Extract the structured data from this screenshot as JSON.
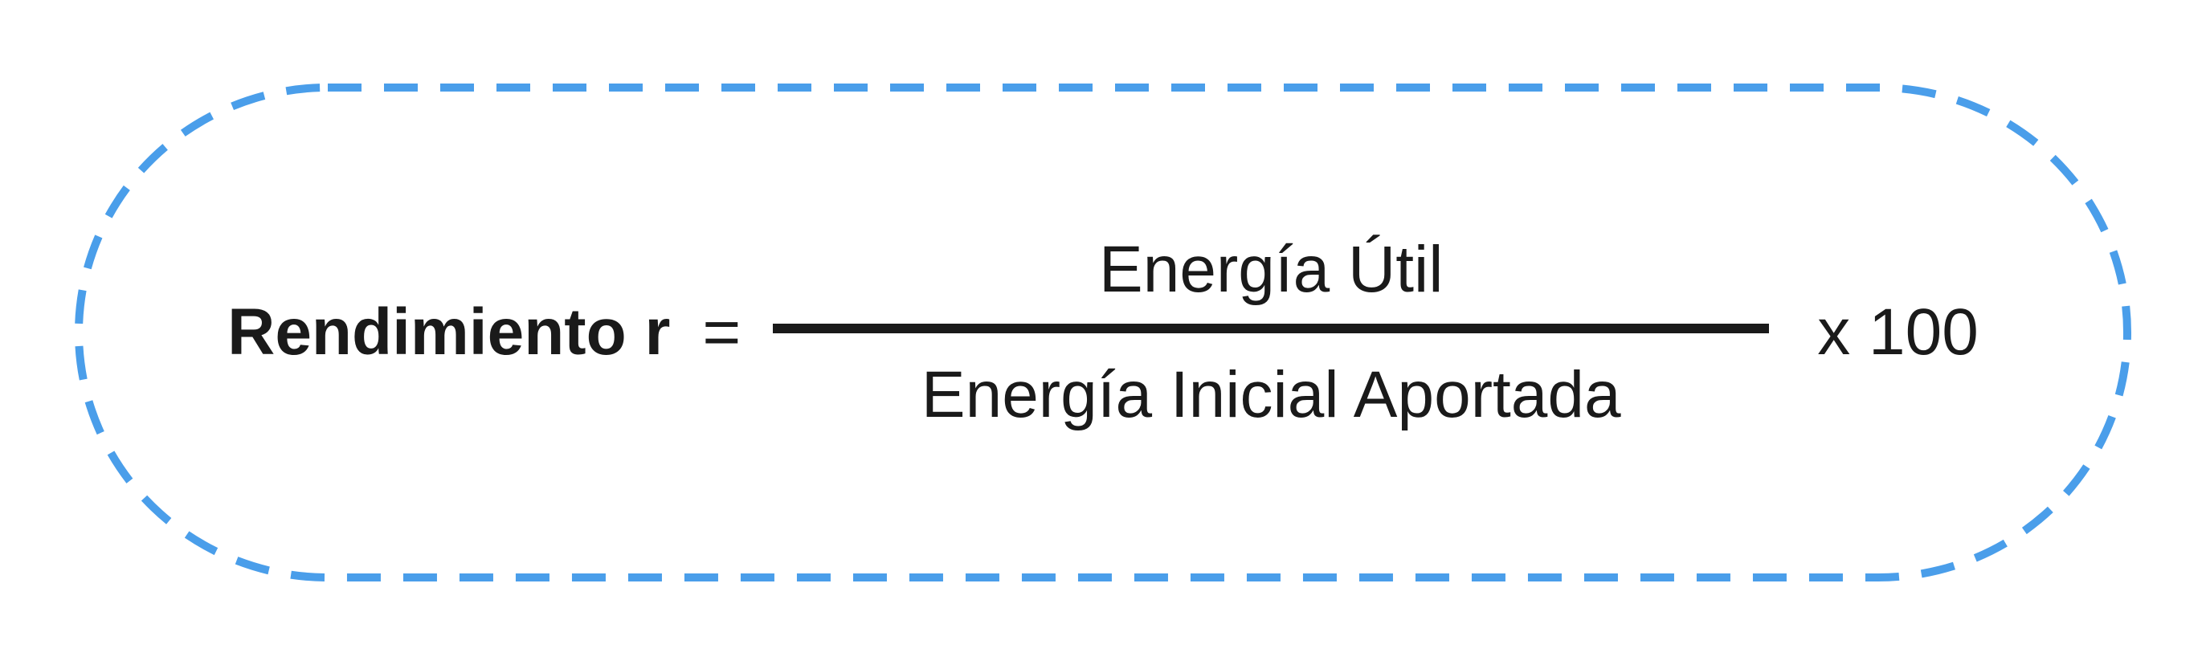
{
  "formula": {
    "label": "Rendimiento r",
    "equals": "=",
    "numerator": "Energía Útil",
    "denominator": "Energía Inicial Aportada",
    "multiplier": "x 100"
  },
  "styling": {
    "border_color": "#4a9eea",
    "border_width": 10,
    "border_dash": "42 28",
    "border_radius": 310,
    "text_color": "#1a1a1a",
    "label_fontsize": 82,
    "label_fontweight": 700,
    "equals_fontsize": 82,
    "fraction_fontsize": 82,
    "fraction_bar_width": 1240,
    "fraction_bar_height": 12,
    "fraction_bar_color": "#1a1a1a",
    "multiplier_fontsize": 82,
    "background_color": "#ffffff",
    "container_width": 2560,
    "container_height": 620
  }
}
